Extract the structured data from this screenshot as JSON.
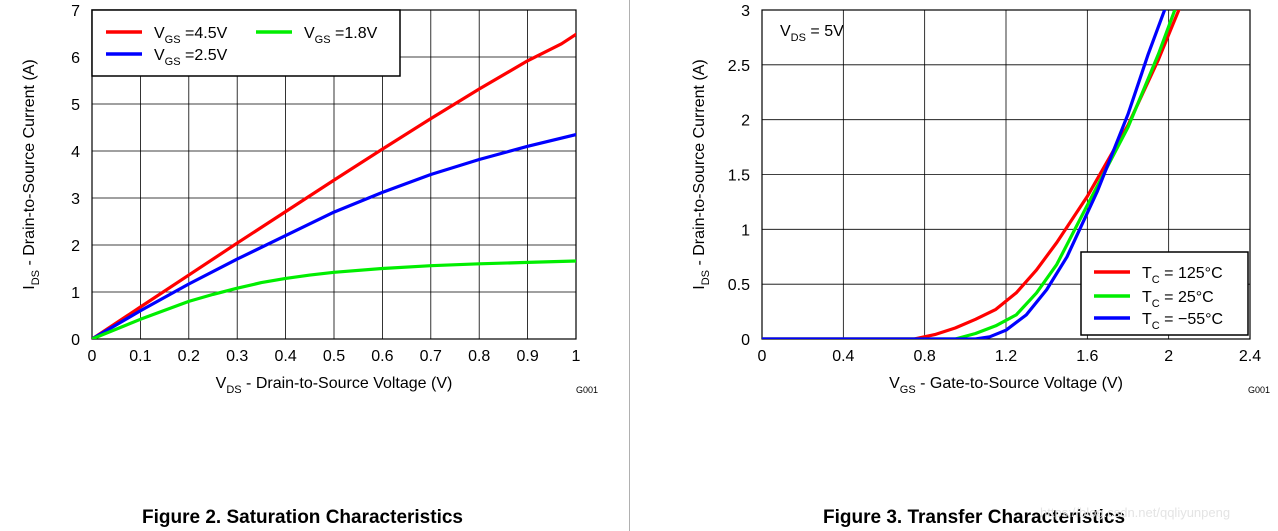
{
  "figure2": {
    "caption": "Figure 2. Saturation Characteristics",
    "code": "G001"
  },
  "figure3": {
    "caption": "Figure 3. Transfer Characteristics",
    "code": "G001",
    "annotation": {
      "main": "V",
      "sub": "DS",
      "suffix": " = 5V"
    }
  },
  "watermark": "https://blog.csdn.net/qqliyunpeng",
  "chart_data": [
    {
      "type": "line",
      "title": "Figure 2. Saturation Characteristics",
      "xlabel": {
        "main": "V",
        "sub": "DS",
        "suffix": " - Drain-to-Source Voltage (V)"
      },
      "ylabel": {
        "main": "I",
        "sub": "DS",
        "suffix": " - Drain-to-Source Current (A)"
      },
      "xlim": [
        0,
        1
      ],
      "ylim": [
        0,
        7
      ],
      "grid": true,
      "legend_position": "top-left",
      "x_ticks": [
        0,
        0.1,
        0.2,
        0.3,
        0.4,
        0.5,
        0.6,
        0.7,
        0.8,
        0.9,
        1
      ],
      "x_tick_labels": [
        "0",
        "0.1",
        "0.2",
        "0.3",
        "0.4",
        "0.5",
        "0.6",
        "0.7",
        "0.8",
        "0.9",
        "1"
      ],
      "y_ticks": [
        0,
        1,
        2,
        3,
        4,
        5,
        6,
        7
      ],
      "y_tick_labels": [
        "0",
        "1",
        "2",
        "3",
        "4",
        "5",
        "6",
        "7"
      ],
      "series": [
        {
          "name": "VGS=4.5V",
          "label": {
            "main": "V",
            "sub": "GS",
            "suffix": " =4.5V"
          },
          "color": "#ff0000",
          "x": [
            0,
            0.1,
            0.2,
            0.3,
            0.4,
            0.5,
            0.6,
            0.7,
            0.8,
            0.9,
            0.97,
            1
          ],
          "y": [
            0,
            0.68,
            1.36,
            2.04,
            2.71,
            3.38,
            4.04,
            4.69,
            5.32,
            5.92,
            6.28,
            6.48
          ]
        },
        {
          "name": "VGS=2.5V",
          "label": {
            "main": "V",
            "sub": "GS",
            "suffix": " =2.5V"
          },
          "color": "#0000ff",
          "x": [
            0,
            0.1,
            0.2,
            0.3,
            0.4,
            0.5,
            0.6,
            0.7,
            0.8,
            0.9,
            1
          ],
          "y": [
            0,
            0.6,
            1.17,
            1.7,
            2.2,
            2.7,
            3.12,
            3.5,
            3.82,
            4.1,
            4.35
          ]
        },
        {
          "name": "VGS=1.8V",
          "label": {
            "main": "V",
            "sub": "GS",
            "suffix": " =1.8V"
          },
          "color": "#00ee00",
          "x": [
            0,
            0.1,
            0.2,
            0.25,
            0.3,
            0.35,
            0.4,
            0.45,
            0.5,
            0.6,
            0.7,
            0.8,
            0.9,
            1
          ],
          "y": [
            0,
            0.42,
            0.8,
            0.95,
            1.08,
            1.2,
            1.29,
            1.36,
            1.42,
            1.5,
            1.56,
            1.6,
            1.63,
            1.66
          ]
        }
      ]
    },
    {
      "type": "line",
      "title": "Figure 3. Transfer Characteristics",
      "xlabel": {
        "main": "V",
        "sub": "GS",
        "suffix": " - Gate-to-Source Voltage (V)"
      },
      "ylabel": {
        "main": "I",
        "sub": "DS",
        "suffix": " - Drain-to-Source Current (A)"
      },
      "xlim": [
        0,
        2.4
      ],
      "ylim": [
        0,
        3
      ],
      "grid": true,
      "legend_position": "bottom-right",
      "x_ticks": [
        0,
        0.4,
        0.8,
        1.2,
        1.6,
        2,
        2.4
      ],
      "x_tick_labels": [
        "0",
        "0.4",
        "0.8",
        "1.2",
        "1.6",
        "2",
        "2.4"
      ],
      "y_ticks": [
        0,
        0.5,
        1,
        1.5,
        2,
        2.5,
        3
      ],
      "y_tick_labels": [
        "0",
        "0.5",
        "1",
        "1.5",
        "2",
        "2.5",
        "3"
      ],
      "series": [
        {
          "name": "TC=125°C",
          "label": {
            "main": "T",
            "sub": "C",
            "suffix": " = 125°C"
          },
          "color": "#ff0000",
          "x": [
            0,
            0.75,
            0.85,
            0.95,
            1.05,
            1.15,
            1.25,
            1.35,
            1.45,
            1.6,
            1.8,
            1.95,
            2.05
          ],
          "y": [
            0,
            0,
            0.04,
            0.1,
            0.18,
            0.27,
            0.42,
            0.63,
            0.88,
            1.3,
            1.95,
            2.55,
            3.0
          ]
        },
        {
          "name": "TC=25°C",
          "label": {
            "main": "T",
            "sub": "C",
            "suffix": " = 25°C"
          },
          "color": "#00ee00",
          "x": [
            0,
            0.95,
            1.05,
            1.15,
            1.25,
            1.35,
            1.45,
            1.6,
            1.8,
            1.95,
            2.03
          ],
          "y": [
            0,
            0,
            0.05,
            0.12,
            0.22,
            0.42,
            0.68,
            1.22,
            1.93,
            2.6,
            3.0
          ]
        },
        {
          "name": "TC=-55°C",
          "label": {
            "main": "T",
            "sub": "C",
            "suffix": " = −55°C"
          },
          "color": "#0000ff",
          "x": [
            0,
            1.05,
            1.12,
            1.2,
            1.3,
            1.4,
            1.5,
            1.65,
            1.8,
            1.9,
            1.98
          ],
          "y": [
            0,
            0,
            0.02,
            0.08,
            0.22,
            0.45,
            0.75,
            1.35,
            2.05,
            2.6,
            3.0
          ]
        }
      ]
    }
  ]
}
